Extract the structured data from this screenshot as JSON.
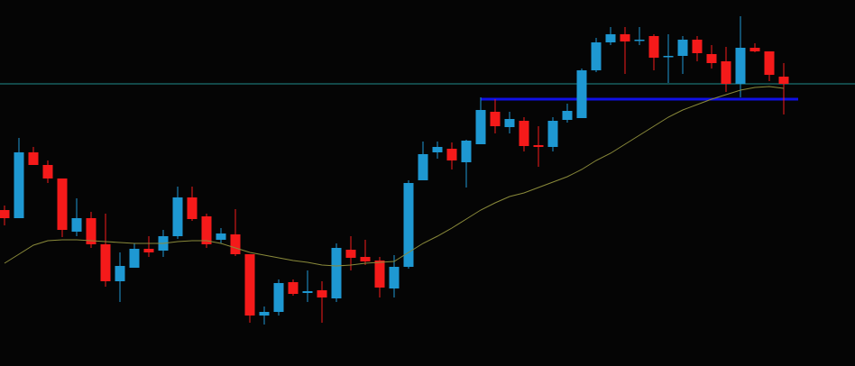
{
  "chart_data": {
    "type": "candlestick",
    "open": [
      173,
      164,
      237,
      223,
      208,
      149,
      164,
      135,
      94,
      109,
      130,
      128,
      144,
      187,
      166,
      140,
      146,
      124,
      56,
      60,
      93,
      81,
      84,
      75,
      129,
      121,
      117,
      86,
      110,
      206,
      237,
      241,
      226,
      246,
      282,
      265,
      272,
      245,
      243,
      273,
      275,
      328,
      359,
      368,
      361,
      366,
      343,
      344,
      362,
      346,
      338,
      313,
      353,
      349,
      321
    ],
    "high": [
      178,
      253,
      243,
      228,
      208,
      186,
      171,
      169,
      126,
      136,
      144,
      151,
      199,
      199,
      169,
      153,
      174,
      124,
      66,
      96,
      96,
      106,
      94,
      136,
      144,
      140,
      121,
      123,
      206,
      249,
      249,
      248,
      251,
      298,
      296,
      282,
      276,
      266,
      276,
      291,
      330,
      364,
      376,
      376,
      376,
      368,
      368,
      366,
      366,
      356,
      354,
      388,
      358,
      349,
      336
    ],
    "low": [
      156,
      164,
      223,
      203,
      143,
      144,
      131,
      88,
      71,
      109,
      121,
      121,
      141,
      161,
      131,
      136,
      122,
      48,
      46,
      56,
      78,
      71,
      48,
      71,
      106,
      112,
      76,
      76,
      108,
      206,
      230,
      218,
      198,
      246,
      258,
      258,
      238,
      221,
      238,
      270,
      275,
      326,
      356,
      324,
      356,
      328,
      314,
      324,
      338,
      330,
      304,
      298,
      348,
      316,
      279
    ],
    "close": [
      164,
      237,
      223,
      208,
      151,
      164,
      135,
      94,
      111,
      130,
      126,
      144,
      187,
      163,
      135,
      147,
      124,
      56,
      60,
      92,
      80,
      83,
      76,
      131,
      120,
      116,
      87,
      110,
      203,
      235,
      243,
      228,
      250,
      284,
      266,
      274,
      244,
      243,
      272,
      283,
      328,
      359,
      368,
      360,
      362,
      342,
      344,
      362,
      347,
      336,
      313,
      353,
      349,
      323,
      313
    ],
    "up_color": "#1e98d2",
    "down_color": "#f51a1a",
    "ma": {
      "color": "#8a8a3a",
      "values": [
        114,
        124,
        134,
        139,
        140,
        140,
        139,
        138,
        137,
        136,
        136,
        136,
        138,
        139,
        139,
        136,
        131,
        126,
        123,
        120,
        117,
        115,
        112,
        111,
        112,
        114,
        115,
        116,
        126,
        136,
        144,
        153,
        163,
        173,
        181,
        188,
        192,
        198,
        204,
        210,
        218,
        228,
        236,
        246,
        256,
        266,
        276,
        284,
        290,
        296,
        301,
        306,
        309,
        310,
        308
      ]
    },
    "levels": [
      {
        "value": 313,
        "color": "#1f8a8a"
      },
      {
        "value": 296,
        "color": "#1010e6"
      }
    ],
    "ylim": [
      0,
      406
    ]
  }
}
